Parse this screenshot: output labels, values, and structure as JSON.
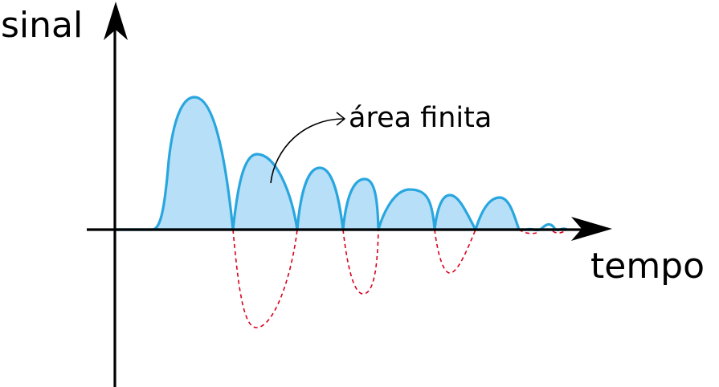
{
  "labels": {
    "y_axis": "sinal",
    "x_axis": "tempo",
    "annotation": "área finita"
  },
  "colors": {
    "signal_stroke": "#2aa6df",
    "signal_fill": "#b7e0f8",
    "negative_dashed": "#d9001b",
    "axis": "#000000"
  },
  "icons": {
    "x_axis_arrow": "arrowhead-right",
    "y_axis_arrow": "arrowhead-up",
    "annotation_pointer": "curved-arrow"
  }
}
